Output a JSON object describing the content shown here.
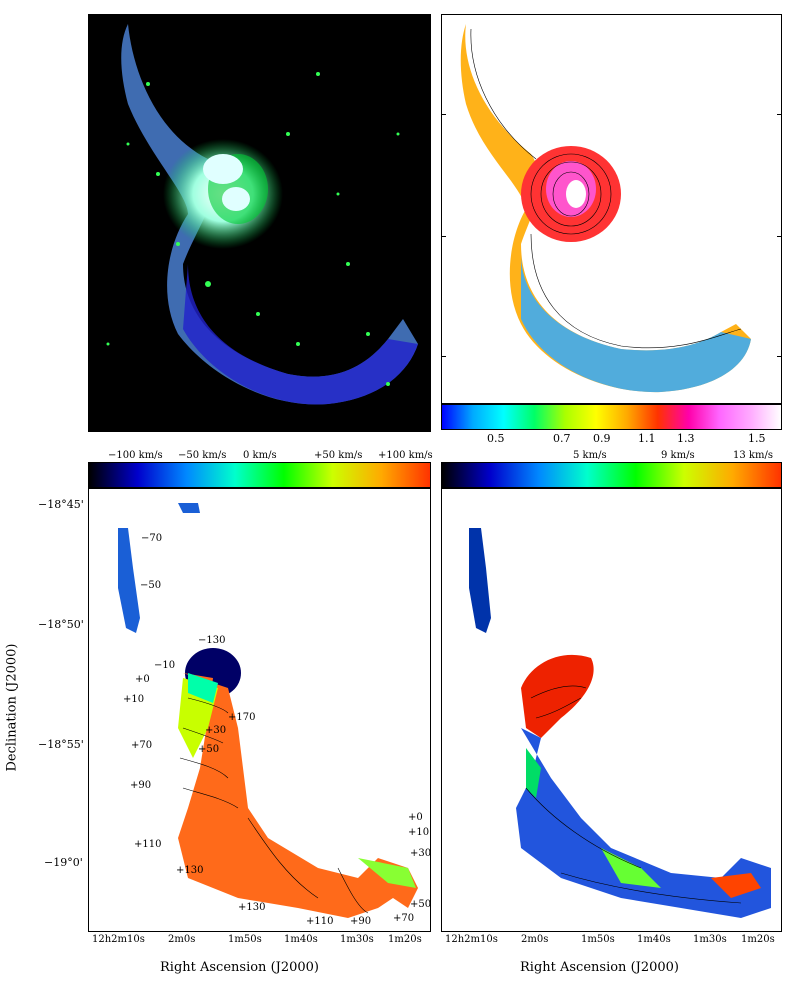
{
  "colors": {
    "optical_bg": "#000000",
    "ratio_scale": [
      "#0000ff",
      "#00aaff",
      "#00ffff",
      "#00ff66",
      "#aaff00",
      "#ffff00",
      "#ffaa00",
      "#ff3300",
      "#ff00aa",
      "#ff66ff",
      "#ffaaff",
      "#ffffff"
    ],
    "velocity_scale": [
      "#000000",
      "#0000cc",
      "#0088ff",
      "#00ffcc",
      "#00ff00",
      "#ccff00",
      "#ffaa00",
      "#ff3300"
    ]
  },
  "top_right": {
    "colorbar_labels": [
      "0.5",
      "0.7",
      "0.9",
      "1.1",
      "1.3",
      "1.5"
    ]
  },
  "bottom_left": {
    "colorbar_labels": [
      "−100 km/s",
      "−50 km/s",
      "0 km/s",
      "+50 km/s",
      "+100 km/s"
    ],
    "dec_ticks": [
      "−18°45'",
      "−18°50'",
      "−18°55'",
      "−19°0'"
    ],
    "ra_ticks": [
      "12h2m10s",
      "2m0s",
      "1m50s",
      "1m40s",
      "1m30s",
      "1m20s"
    ],
    "ylabel": "Declination (J2000)",
    "xlabel": "Right Ascension (J2000)",
    "contour_labels": [
      "−70",
      "−50",
      "−130",
      "−10",
      "+0",
      "+10",
      "+30",
      "+170",
      "+50",
      "+70",
      "+90",
      "+110",
      "+130",
      "+130",
      "+110",
      "+90",
      "+70",
      "+50",
      "+30",
      "+10",
      "+0"
    ]
  },
  "bottom_right": {
    "colorbar_labels": [
      "5 km/s",
      "9 km/s",
      "13 km/s"
    ],
    "ra_ticks": [
      "12h2m10s",
      "2m0s",
      "1m50s",
      "1m40s",
      "1m30s",
      "1m20s"
    ],
    "xlabel": "Right Ascension (J2000)"
  }
}
